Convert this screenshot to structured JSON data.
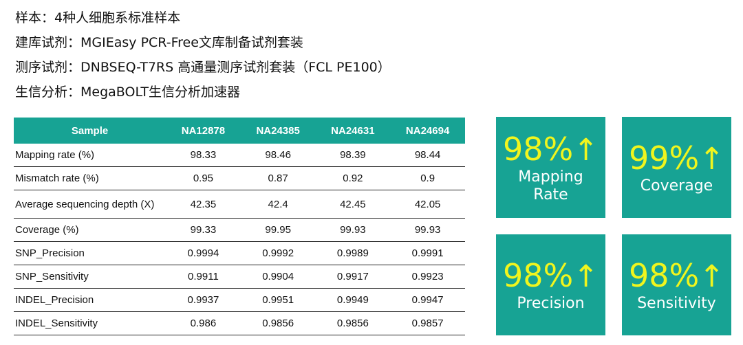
{
  "info": [
    {
      "key": "样本：",
      "value": "4种人细胞系标准样本"
    },
    {
      "key": "建库试剂：",
      "value": "MGIEasy PCR-Free文库制备试剂套装"
    },
    {
      "key": "测序试剂：",
      "value": "DNBSEQ-T7RS 高通量测序试剂套装（FCL PE100）"
    },
    {
      "key": "生信分析：",
      "value": "MegaBOLT生信分析加速器"
    }
  ],
  "table": {
    "headers": [
      "Sample",
      "NA12878",
      "NA24385",
      "NA24631",
      "NA24694"
    ],
    "rows": [
      {
        "name": "Mapping rate (%)",
        "values": [
          "98.33",
          "98.46",
          "98.39",
          "98.44"
        ]
      },
      {
        "name": "Mismatch rate (%)",
        "values": [
          "0.95",
          "0.87",
          "0.92",
          "0.9"
        ]
      },
      {
        "name": "Average sequencing depth (X)",
        "values": [
          "42.35",
          "42.4",
          "42.45",
          "42.05"
        ]
      },
      {
        "name": "Coverage (%)",
        "values": [
          "99.33",
          "99.95",
          "99.93",
          "99.93"
        ]
      },
      {
        "name": "SNP_Precision",
        "values": [
          "0.9994",
          "0.9992",
          "0.9989",
          "0.9991"
        ]
      },
      {
        "name": "SNP_Sensitivity",
        "values": [
          "0.9911",
          "0.9904",
          "0.9917",
          "0.9923"
        ]
      },
      {
        "name": "INDEL_Precision",
        "values": [
          "0.9937",
          "0.9951",
          "0.9949",
          "0.9947"
        ]
      },
      {
        "name": "INDEL_Sensitivity",
        "values": [
          "0.986",
          "0.9856",
          "0.9856",
          "0.9857"
        ]
      }
    ]
  },
  "cards": [
    {
      "value": "98%",
      "arrow": "↑",
      "label_line1": "Mapping",
      "label_line2": "Rate"
    },
    {
      "value": "99%",
      "arrow": "↑",
      "label_line1": "Coverage",
      "label_line2": ""
    },
    {
      "value": "98%",
      "arrow": "↑",
      "label_line1": "Precision",
      "label_line2": ""
    },
    {
      "value": "98%",
      "arrow": "↑",
      "label_line1": "Sensitivity",
      "label_line2": ""
    }
  ],
  "colors": {
    "accent": "#17a394",
    "highlight": "#f0f51e"
  }
}
